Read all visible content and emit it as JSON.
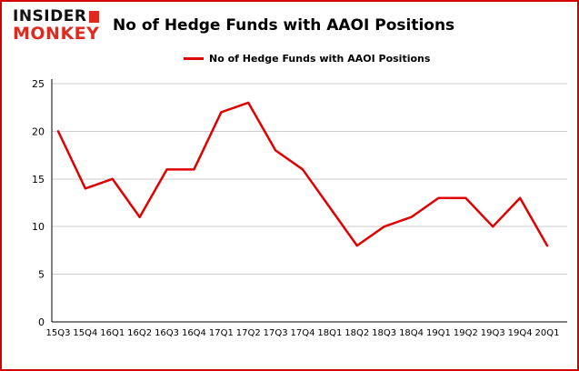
{
  "brand": {
    "line1": "INSIDER",
    "line2": "MONKEY",
    "accent_color": "#e02a20"
  },
  "header": {
    "title": "No of Hedge Funds with AAOI Positions"
  },
  "legend": {
    "label": "No of Hedge Funds with AAOI Positions",
    "color": "#e00000"
  },
  "chart_data": {
    "type": "line",
    "title": "No of Hedge Funds with AAOI Positions",
    "categories": [
      "15Q3",
      "15Q4",
      "16Q1",
      "16Q2",
      "16Q3",
      "16Q4",
      "17Q1",
      "17Q2",
      "17Q3",
      "17Q4",
      "18Q1",
      "18Q2",
      "18Q3",
      "18Q4",
      "19Q1",
      "19Q2",
      "19Q3",
      "19Q4",
      "20Q1"
    ],
    "values": [
      20,
      14,
      15,
      11,
      16,
      16,
      22,
      23,
      18,
      16,
      12,
      8,
      10,
      11,
      13,
      13,
      10,
      13,
      8
    ],
    "xlabel": "",
    "ylabel": "",
    "ylim": [
      0,
      25
    ],
    "yticks": [
      0,
      5,
      10,
      15,
      20,
      25
    ],
    "line_color": "#e00000",
    "grid": true,
    "legend_position": "top"
  },
  "colors": {
    "border": "#d40000",
    "grid": "#cccccc",
    "axis": "#000000",
    "background": "#ffffff"
  }
}
